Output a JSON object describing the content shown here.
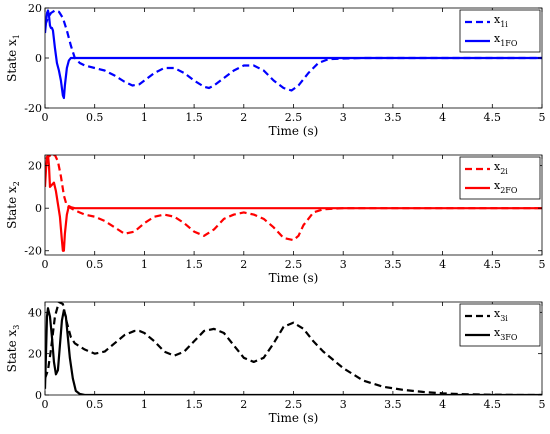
{
  "chart_data": [
    {
      "type": "line",
      "xlabel": "Time (s)",
      "ylabel": "State x",
      "ylabel_sub": "1",
      "xlim": [
        0,
        5
      ],
      "ylim": [
        -20,
        20
      ],
      "xticks": [
        "0",
        "0.5",
        "1",
        "1.5",
        "2",
        "2.5",
        "3",
        "3.5",
        "4",
        "4.5",
        "5"
      ],
      "yticks": [
        "20",
        "0",
        "-20"
      ],
      "ytick_values": [
        20,
        0,
        -20
      ],
      "legend_position": "top-right",
      "series": [
        {
          "name": "x",
          "name_sub": "1i",
          "color": "#0000ff",
          "dash": true,
          "x": [
            0,
            0.03,
            0.06,
            0.1,
            0.14,
            0.18,
            0.22,
            0.26,
            0.3,
            0.35,
            0.4,
            0.5,
            0.6,
            0.7,
            0.8,
            0.88,
            0.95,
            1.0,
            1.1,
            1.2,
            1.3,
            1.4,
            1.5,
            1.6,
            1.65,
            1.7,
            1.8,
            1.9,
            2.0,
            2.1,
            2.2,
            2.3,
            2.4,
            2.48,
            2.55,
            2.65,
            2.75,
            2.85,
            3.0,
            3.2,
            3.5,
            4.0,
            5.0
          ],
          "y": [
            13,
            16,
            18,
            19,
            18.5,
            16,
            11,
            5,
            0,
            -2,
            -3,
            -4,
            -5,
            -7,
            -9.5,
            -11,
            -10.5,
            -9,
            -6,
            -4,
            -4,
            -6,
            -9,
            -11.5,
            -12,
            -11,
            -8,
            -5,
            -3,
            -3,
            -5,
            -9,
            -12,
            -13,
            -11,
            -6,
            -2,
            -0.5,
            -0.2,
            0,
            0,
            0,
            0
          ]
        },
        {
          "name": "x",
          "name_sub": "1FO",
          "color": "#0000ff",
          "dash": false,
          "x": [
            0,
            0.01,
            0.02,
            0.03,
            0.04,
            0.05,
            0.06,
            0.07,
            0.08,
            0.1,
            0.12,
            0.14,
            0.16,
            0.18,
            0.19,
            0.2,
            0.22,
            0.24,
            0.26,
            0.3,
            0.35,
            5.0
          ],
          "y": [
            10,
            14,
            18,
            19,
            17,
            13,
            12,
            12,
            11,
            4,
            -2,
            -5,
            -9,
            -15,
            -16,
            -11,
            -4,
            -1,
            0,
            0,
            0,
            0
          ]
        }
      ]
    },
    {
      "type": "line",
      "xlabel": "Time (s)",
      "ylabel": "State x",
      "ylabel_sub": "2",
      "xlim": [
        0,
        5
      ],
      "ylim": [
        -22,
        25
      ],
      "xticks": [
        "0",
        "0.5",
        "1",
        "1.5",
        "2",
        "2.5",
        "3",
        "3.5",
        "4",
        "4.5",
        "5"
      ],
      "yticks": [
        "20",
        "0",
        "-20"
      ],
      "ytick_values": [
        20,
        0,
        -20
      ],
      "legend_position": "top-right",
      "series": [
        {
          "name": "x",
          "name_sub": "2i",
          "color": "#ff0000",
          "dash": true,
          "x": [
            0,
            0.02,
            0.04,
            0.06,
            0.08,
            0.1,
            0.13,
            0.16,
            0.19,
            0.22,
            0.26,
            0.3,
            0.35,
            0.4,
            0.5,
            0.6,
            0.7,
            0.8,
            0.9,
            1.0,
            1.1,
            1.2,
            1.3,
            1.4,
            1.5,
            1.6,
            1.7,
            1.8,
            1.9,
            2.0,
            2.1,
            2.2,
            2.3,
            2.4,
            2.5,
            2.55,
            2.6,
            2.7,
            2.8,
            3.0,
            5.0
          ],
          "y": [
            18,
            24,
            25,
            24,
            25,
            25,
            22,
            15,
            6,
            1,
            0,
            -1,
            -2,
            -3,
            -4,
            -6,
            -9,
            -12,
            -11,
            -7,
            -4,
            -3,
            -4,
            -7,
            -11,
            -13,
            -10,
            -5,
            -3,
            -2,
            -3,
            -5,
            -9,
            -14,
            -15,
            -13,
            -8,
            -2,
            -0.5,
            0,
            0
          ]
        },
        {
          "name": "x",
          "name_sub": "2FO",
          "color": "#ff0000",
          "dash": false,
          "x": [
            0,
            0.01,
            0.02,
            0.03,
            0.04,
            0.05,
            0.07,
            0.09,
            0.11,
            0.13,
            0.15,
            0.17,
            0.18,
            0.19,
            0.2,
            0.22,
            0.24,
            0.26,
            0.3,
            0.35,
            5.0
          ],
          "y": [
            10,
            18,
            24,
            25,
            20,
            10,
            11,
            12,
            8,
            2,
            -4,
            -15,
            -20,
            -20,
            -12,
            -3,
            1,
            0.5,
            0,
            0,
            0
          ]
        }
      ]
    },
    {
      "type": "line",
      "xlabel": "Time (s)",
      "ylabel": "State x",
      "ylabel_sub": "3",
      "xlim": [
        0,
        5
      ],
      "ylim": [
        0,
        45
      ],
      "xticks": [
        "0",
        "0.5",
        "1",
        "1.5",
        "2",
        "2.5",
        "3",
        "3.5",
        "4",
        "4.5",
        "5"
      ],
      "yticks": [
        "40",
        "20",
        "0"
      ],
      "ytick_values": [
        40,
        20,
        0
      ],
      "legend_position": "top-right",
      "series": [
        {
          "name": "x",
          "name_sub": "3i",
          "color": "#000000",
          "dash": true,
          "x": [
            0,
            0.03,
            0.06,
            0.1,
            0.14,
            0.18,
            0.22,
            0.26,
            0.3,
            0.4,
            0.5,
            0.6,
            0.7,
            0.8,
            0.9,
            0.95,
            1.0,
            1.1,
            1.2,
            1.3,
            1.4,
            1.5,
            1.6,
            1.7,
            1.8,
            1.9,
            2.0,
            2.1,
            2.2,
            2.3,
            2.4,
            2.5,
            2.6,
            2.7,
            2.8,
            2.9,
            3.0,
            3.2,
            3.4,
            3.6,
            3.8,
            4.0,
            4.2,
            4.4,
            4.6,
            4.8,
            5.0
          ],
          "y": [
            8,
            12,
            22,
            38,
            45,
            44,
            35,
            28,
            25,
            22,
            20,
            21,
            25,
            29,
            31,
            31,
            30,
            26,
            21,
            19,
            21,
            26,
            31,
            32,
            30,
            24,
            18,
            16,
            18,
            25,
            33,
            35,
            32,
            26,
            21,
            17,
            13,
            7,
            4,
            2.5,
            1.5,
            0.8,
            0.4,
            0.2,
            0.1,
            0,
            0
          ]
        },
        {
          "name": "x",
          "name_sub": "3FO",
          "color": "#000000",
          "dash": false,
          "x": [
            0,
            0.01,
            0.02,
            0.03,
            0.05,
            0.07,
            0.09,
            0.11,
            0.13,
            0.15,
            0.17,
            0.19,
            0.21,
            0.23,
            0.25,
            0.28,
            0.31,
            0.35,
            0.4,
            5.0
          ],
          "y": [
            3,
            20,
            38,
            42,
            38,
            28,
            16,
            10,
            12,
            24,
            36,
            41,
            38,
            28,
            18,
            8,
            2,
            0.5,
            0,
            0
          ]
        }
      ]
    }
  ]
}
